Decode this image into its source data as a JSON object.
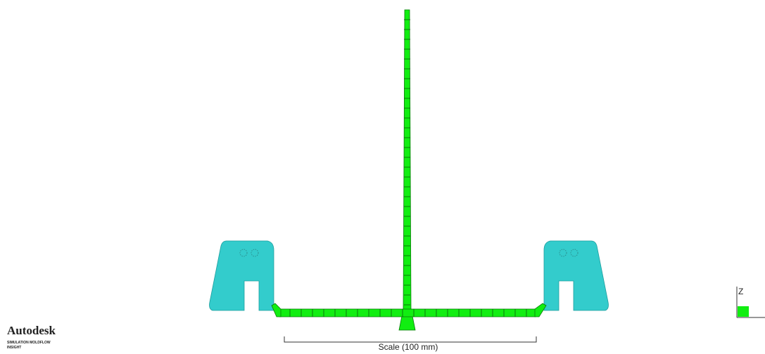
{
  "logo": {
    "brand": "Autodesk",
    "product": "SIMULATION MOLDFLOW",
    "edition": "INSIGHT"
  },
  "scale_label": "Scale (100 mm)",
  "triad": {
    "z": "Z"
  }
}
